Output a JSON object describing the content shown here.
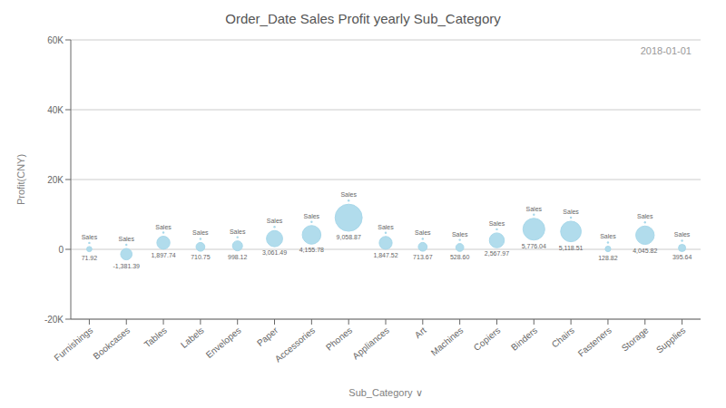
{
  "chart_data": {
    "type": "bubble",
    "title": "Order_Date Sales Profit yearly Sub_Category",
    "xlabel": "Sub_Category ∨",
    "ylabel": "Profit(CNY)",
    "annotations": [
      "2018-01-01"
    ],
    "point_label": "Sales",
    "categories": [
      "Furnishings",
      "Bookcases",
      "Tables",
      "Labels",
      "Envelopes",
      "Paper",
      "Accessories",
      "Phones",
      "Appliances",
      "Art",
      "Machines",
      "Copiers",
      "Binders",
      "Chairs",
      "Fasteners",
      "Storage",
      "Supplies"
    ],
    "values": [
      71.92,
      -1381.39,
      1897.74,
      710.75,
      998.12,
      3061.49,
      4155.78,
      9058.87,
      1847.52,
      713.67,
      528.6,
      2567.97,
      5776.04,
      5118.51,
      128.82,
      4045.82,
      395.64
    ],
    "value_labels": [
      "71.92",
      "-1,381.39",
      "1,897.74",
      "710.75",
      "998.12",
      "3,061.49",
      "4,155.78",
      "9,058.87",
      "1,847.52",
      "713.67",
      "528.60",
      "2,567.97",
      "5,776.04",
      "5,118.51",
      "128.82",
      "4,045.82",
      "395.64"
    ],
    "sizes": [
      71.92,
      1381.39,
      1897.74,
      710.75,
      998.12,
      3061.49,
      4155.78,
      9058.87,
      1847.52,
      713.67,
      528.6,
      2567.97,
      5776.04,
      5118.51,
      128.82,
      4045.82,
      395.64
    ],
    "color": "#a8d8ea",
    "ylim": [
      -20000,
      60000
    ],
    "yticks": [
      {
        "value": -20000,
        "label": "-20K"
      },
      0,
      {
        "value": 20000,
        "label": "20K"
      },
      {
        "value": 40000,
        "label": "40K"
      },
      {
        "value": 60000,
        "label": "60K"
      }
    ],
    "grid": true,
    "data_labels": true
  }
}
